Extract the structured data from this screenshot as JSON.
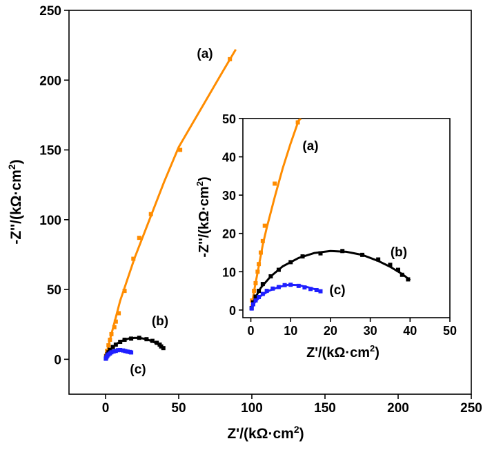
{
  "chart_data": [
    {
      "type": "scatter",
      "panel": "main",
      "xlabel": "Z'/(kΩ·cm2)",
      "ylabel": "-Z''/(kΩ·cm2)",
      "xlim": [
        -25,
        250
      ],
      "ylim": [
        -25,
        250
      ],
      "xticks": [
        0,
        50,
        100,
        150,
        200,
        250
      ],
      "yticks": [
        0,
        50,
        100,
        150,
        200,
        250
      ],
      "tick_labels": [
        "0",
        "50",
        "100",
        "150",
        "200",
        "250"
      ],
      "series": [
        {
          "name": "(a)",
          "color": "#ff8c00",
          "marker": "square",
          "points": [
            [
              0.3,
              2.5
            ],
            [
              1,
              6
            ],
            [
              2,
              10
            ],
            [
              3,
              14
            ],
            [
              4,
              18
            ],
            [
              6,
              23
            ],
            [
              7,
              27
            ],
            [
              9,
              33
            ],
            [
              13,
              49
            ],
            [
              19,
              72
            ],
            [
              23,
              87
            ],
            [
              31,
              104
            ],
            [
              51,
              150
            ],
            [
              85,
              215
            ]
          ],
          "fit": [
            [
              0,
              0
            ],
            [
              2,
              10
            ],
            [
              5,
              22
            ],
            [
              10,
              42
            ],
            [
              20,
              73
            ],
            [
              30,
              100
            ],
            [
              40,
              127
            ],
            [
              50,
              152
            ],
            [
              60,
              170
            ],
            [
              70,
              188
            ],
            [
              80,
              206
            ],
            [
              89,
              222
            ]
          ]
        },
        {
          "name": "(b)",
          "color": "#000000",
          "marker": "square",
          "points": [
            [
              0.2,
              0.5
            ],
            [
              0.6,
              2
            ],
            [
              1.2,
              3.5
            ],
            [
              2,
              5
            ],
            [
              3,
              6.8
            ],
            [
              5,
              8.8
            ],
            [
              7,
              10.5
            ],
            [
              10,
              12.5
            ],
            [
              13,
              14
            ],
            [
              17.5,
              14.8
            ],
            [
              23,
              15.4
            ],
            [
              28,
              14.4
            ],
            [
              32,
              13.2
            ],
            [
              35,
              11.8
            ],
            [
              37,
              10.5
            ],
            [
              38,
              9.2
            ],
            [
              39.5,
              8
            ]
          ],
          "fit": [
            [
              0,
              0
            ],
            [
              1,
              3
            ],
            [
              2.5,
              5.8
            ],
            [
              5,
              8.8
            ],
            [
              8,
              11.4
            ],
            [
              12,
              13.6
            ],
            [
              16,
              14.9
            ],
            [
              20,
              15.4
            ],
            [
              24,
              15.2
            ],
            [
              28,
              14.4
            ],
            [
              32,
              12.8
            ],
            [
              35,
              11.3
            ],
            [
              38,
              9.4
            ],
            [
              40,
              7.8
            ]
          ]
        },
        {
          "name": "(c)",
          "color": "#1f1fff",
          "marker": "square",
          "points": [
            [
              0.2,
              0.4
            ],
            [
              0.6,
              1.5
            ],
            [
              1.2,
              2.5
            ],
            [
              2,
              3.4
            ],
            [
              3,
              4.2
            ],
            [
              4,
              5
            ],
            [
              5.5,
              5.6
            ],
            [
              7,
              6
            ],
            [
              8.5,
              6.5
            ],
            [
              10,
              6.6
            ],
            [
              12,
              6.3
            ],
            [
              13.5,
              5.9
            ],
            [
              15,
              5.5
            ],
            [
              16.5,
              5.2
            ],
            [
              17.5,
              4.9
            ]
          ],
          "fit": [
            [
              0,
              0
            ],
            [
              1,
              2
            ],
            [
              2.5,
              3.7
            ],
            [
              4.5,
              5
            ],
            [
              7,
              6
            ],
            [
              9.5,
              6.6
            ],
            [
              12,
              6.5
            ],
            [
              14.5,
              5.9
            ],
            [
              17.5,
              5
            ]
          ]
        }
      ]
    },
    {
      "type": "scatter",
      "panel": "inset",
      "xlabel": "Z'/(kΩ·cm2)",
      "ylabel": "-Z''/(kΩ·cm2)",
      "xlim": [
        -2,
        50
      ],
      "ylim": [
        -2,
        50
      ],
      "xticks": [
        0,
        10,
        20,
        30,
        40,
        50
      ],
      "yticks": [
        0,
        10,
        20,
        30,
        40,
        50
      ],
      "tick_labels": [
        "0",
        "10",
        "20",
        "30",
        "40",
        "50"
      ],
      "series": [
        {
          "name": "(a)",
          "color": "#ff8c00",
          "marker": "square",
          "points": [
            [
              0.3,
              2.5
            ],
            [
              0.8,
              5
            ],
            [
              1.2,
              7
            ],
            [
              1.7,
              10
            ],
            [
              2,
              12
            ],
            [
              2.5,
              15
            ],
            [
              3,
              18
            ],
            [
              3.5,
              22
            ],
            [
              6,
              33
            ],
            [
              11.8,
              49
            ]
          ],
          "fit": [
            [
              0,
              0
            ],
            [
              1,
              6
            ],
            [
              2,
              11.5
            ],
            [
              3,
              17
            ],
            [
              4,
              21.5
            ],
            [
              6,
              29.5
            ],
            [
              8,
              37
            ],
            [
              10,
              43.5
            ],
            [
              12,
              49.5
            ],
            [
              12.6,
              50
            ]
          ]
        },
        {
          "name": "(b)",
          "color": "#000000",
          "marker": "square",
          "points": [
            [
              0.2,
              0.5
            ],
            [
              0.6,
              2
            ],
            [
              1.2,
              3.5
            ],
            [
              2,
              5
            ],
            [
              3,
              6.8
            ],
            [
              5,
              8.8
            ],
            [
              7,
              10.5
            ],
            [
              10,
              12.5
            ],
            [
              13,
              14
            ],
            [
              17.5,
              14.8
            ],
            [
              23,
              15.4
            ],
            [
              28,
              14.4
            ],
            [
              32,
              13.2
            ],
            [
              35,
              11.8
            ],
            [
              37,
              10.5
            ],
            [
              38,
              9.2
            ],
            [
              39.5,
              8
            ]
          ],
          "fit": [
            [
              0,
              0
            ],
            [
              1,
              3
            ],
            [
              2.5,
              5.8
            ],
            [
              5,
              8.8
            ],
            [
              8,
              11.4
            ],
            [
              12,
              13.6
            ],
            [
              16,
              14.9
            ],
            [
              20,
              15.4
            ],
            [
              24,
              15.2
            ],
            [
              28,
              14.4
            ],
            [
              32,
              12.8
            ],
            [
              35,
              11.3
            ],
            [
              38,
              9.4
            ],
            [
              40,
              7.8
            ]
          ]
        },
        {
          "name": "(c)",
          "color": "#1f1fff",
          "marker": "square",
          "points": [
            [
              0.2,
              0.4
            ],
            [
              0.6,
              1.5
            ],
            [
              1.2,
              2.5
            ],
            [
              2,
              3.4
            ],
            [
              3,
              4.2
            ],
            [
              4,
              5
            ],
            [
              5.5,
              5.6
            ],
            [
              7,
              6
            ],
            [
              8.5,
              6.5
            ],
            [
              10,
              6.6
            ],
            [
              12,
              6.3
            ],
            [
              13.5,
              5.9
            ],
            [
              15,
              5.5
            ],
            [
              16.5,
              5.2
            ],
            [
              17.5,
              4.9
            ]
          ],
          "fit": [
            [
              0,
              0
            ],
            [
              1,
              2
            ],
            [
              2.5,
              3.7
            ],
            [
              4.5,
              5
            ],
            [
              7,
              6
            ],
            [
              9.5,
              6.6
            ],
            [
              12,
              6.5
            ],
            [
              14.5,
              5.9
            ],
            [
              17.5,
              5
            ]
          ]
        }
      ]
    }
  ]
}
